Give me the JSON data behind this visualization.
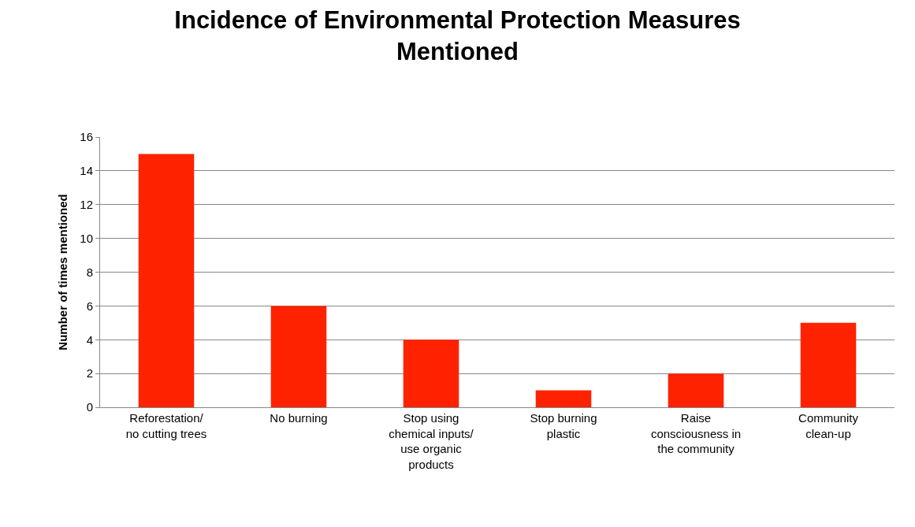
{
  "chart_data": {
    "type": "bar",
    "title": "Incidence of Environmental Protection Measures Mentioned",
    "ylabel": "Number of times mentioned",
    "categories": [
      "Reforestation/ no cutting trees",
      "No burning",
      "Stop using chemical inputs/ use organic products",
      "Stop burning plastic",
      "Raise consciousness in the community",
      "Community clean-up"
    ],
    "values": [
      15,
      6,
      4,
      1,
      2,
      5
    ],
    "color": "#ff2200",
    "ylim": [
      0,
      16
    ],
    "yticks": [
      0,
      2,
      4,
      6,
      8,
      10,
      12,
      14,
      16
    ],
    "grid": "y"
  }
}
